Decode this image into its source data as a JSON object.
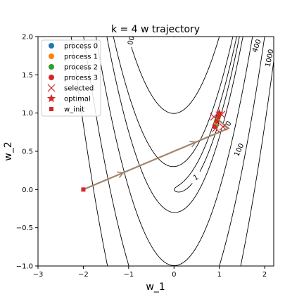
{
  "chart_data": {
    "type": "line",
    "title": "k = 4 w trajectory",
    "xlabel": "w_1",
    "ylabel": "w_2",
    "xlim": [
      -3,
      2.2
    ],
    "ylim": [
      -1,
      2
    ],
    "xticks": [
      -3,
      -2,
      -1,
      0,
      1,
      2
    ],
    "yticks": [
      -1.0,
      -0.5,
      0.0,
      0.5,
      1.0,
      1.5,
      2.0
    ],
    "xtick_labels": [
      "−3",
      "−2",
      "−1",
      "0",
      "1",
      "2"
    ],
    "ytick_labels": [
      "−1.0",
      "−0.5",
      "0.0",
      "0.5",
      "1.0",
      "1.5",
      "2.0"
    ],
    "grid": false,
    "legend_position": "top-left",
    "contour_function": "rosenbrock",
    "contour_levels": [
      1,
      10,
      100,
      400,
      1000
    ],
    "contour_labels": [
      {
        "text": "1",
        "x": 0.48,
        "y": 0.16,
        "rotation": -30
      },
      {
        "text": "10",
        "x": 1.17,
        "y": 0.84,
        "rotation": -55
      },
      {
        "text": "100",
        "x": 1.43,
        "y": 0.52,
        "rotation": -65
      },
      {
        "text": "400",
        "x": 1.82,
        "y": 1.88,
        "rotation": -70
      },
      {
        "text": "1000",
        "x": 2.1,
        "y": 1.72,
        "rotation": -78
      },
      {
        "text": "00",
        "x": -0.95,
        "y": 1.95,
        "rotation": -75
      }
    ],
    "w_init": {
      "label": "w_init",
      "x": -2.0,
      "y": 0.0,
      "color": "#d62728"
    },
    "optimal": {
      "label": "optimal",
      "x": 1.0,
      "y": 1.0,
      "color": "#d62728"
    },
    "trajectory": {
      "color": "#a0856a",
      "points": [
        [
          -2.0,
          0.0
        ],
        [
          -0.4,
          0.4
        ],
        [
          1.2,
          0.8
        ],
        [
          1.1,
          0.85
        ],
        [
          1.0,
          0.9
        ],
        [
          0.95,
          0.92
        ],
        [
          1.02,
          0.95
        ]
      ],
      "arrow_at": [
        [
          -0.4,
          0.4
        ],
        [
          1.2,
          0.8
        ]
      ]
    },
    "series": [
      {
        "name": "process 0",
        "color": "#1f77b4",
        "points": [
          [
            0.93,
            0.88
          ],
          [
            0.97,
            0.94
          ],
          [
            1.0,
            0.98
          ]
        ]
      },
      {
        "name": "process 1",
        "color": "#ff7f0e",
        "points": [
          [
            0.92,
            0.86
          ],
          [
            0.96,
            0.92
          ],
          [
            1.01,
            0.99
          ]
        ]
      },
      {
        "name": "process 2",
        "color": "#2ca02c",
        "points": [
          [
            0.9,
            0.83
          ],
          [
            0.95,
            0.9
          ],
          [
            0.99,
            0.96
          ]
        ]
      },
      {
        "name": "process 3",
        "color": "#d62728",
        "points": [
          [
            0.89,
            0.82
          ],
          [
            0.94,
            0.89
          ],
          [
            0.98,
            0.95
          ]
        ]
      }
    ],
    "selected": {
      "label": "selected",
      "color": "#d62728",
      "points": [
        [
          0.88,
          0.95
        ],
        [
          1.05,
          0.98
        ],
        [
          0.92,
          0.8
        ],
        [
          1.08,
          0.82
        ]
      ]
    },
    "legend": [
      {
        "label": "process 0",
        "marker": "circle",
        "color": "#1f77b4"
      },
      {
        "label": "process 1",
        "marker": "circle",
        "color": "#ff7f0e"
      },
      {
        "label": "process 2",
        "marker": "circle",
        "color": "#2ca02c"
      },
      {
        "label": "process 3",
        "marker": "circle",
        "color": "#d62728"
      },
      {
        "label": "selected",
        "marker": "x",
        "color": "#d62728"
      },
      {
        "label": "optimal",
        "marker": "star",
        "color": "#d62728"
      },
      {
        "label": "w_init",
        "marker": "square",
        "color": "#d62728"
      }
    ]
  }
}
